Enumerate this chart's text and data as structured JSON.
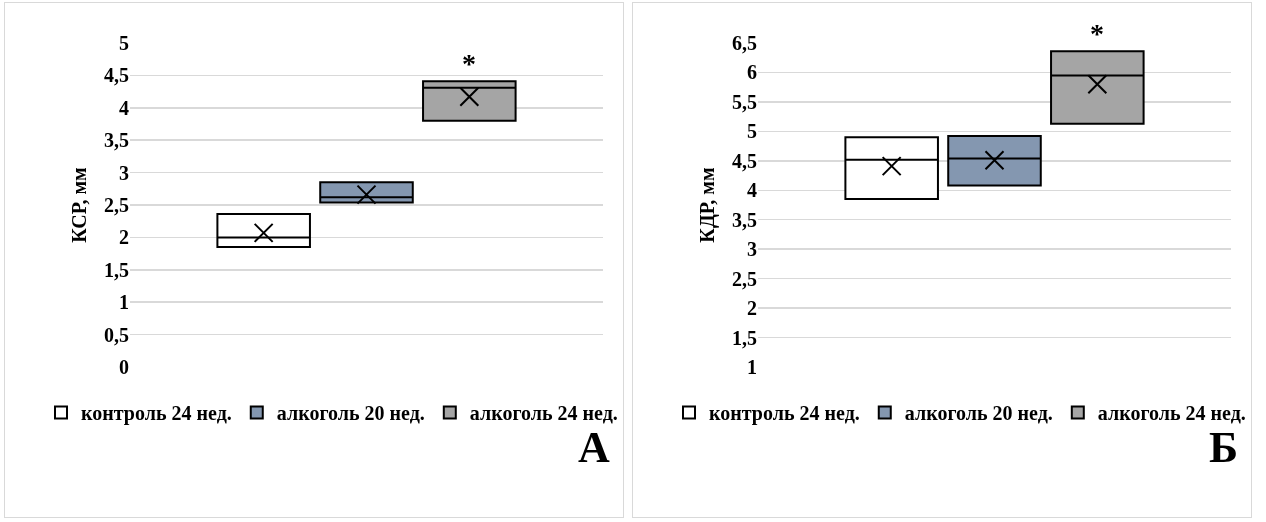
{
  "chart_data": [
    {
      "type": "box",
      "ylabel": "КСР, мм",
      "categories": [
        null
      ],
      "ylim": [
        0,
        5
      ],
      "yticks": [
        0,
        {
          "value": 0.5,
          "label": "0,5"
        },
        1,
        {
          "value": 1.5,
          "label": "1,5"
        },
        2,
        {
          "value": 2.5,
          "label": "2,5"
        },
        3,
        {
          "value": 3.5,
          "label": "3,5"
        },
        4,
        {
          "value": 4.5,
          "label": "4,5"
        },
        5
      ],
      "grid": "y",
      "legend": "bottom",
      "annotations": [
        "*",
        "А"
      ],
      "series": [
        {
          "name": "контроль 24 нед.",
          "color": "#ffffff",
          "boxes": [
            {
              "low": 1.85,
              "q1": 1.85,
              "median": 2.0,
              "q3": 2.36,
              "high": 2.36,
              "mean": 2.07
            }
          ]
        },
        {
          "name": "алкоголь 20 нед.",
          "color": "#8497b0",
          "boxes": [
            {
              "low": 2.54,
              "q1": 2.54,
              "median": 2.62,
              "q3": 2.85,
              "high": 2.85,
              "mean": 2.66
            }
          ]
        },
        {
          "name": "алкоголь 24 нед.",
          "color": "#a5a5a5",
          "boxes": [
            {
              "low": 3.8,
              "q1": 3.8,
              "median": 4.31,
              "q3": 4.41,
              "high": 4.41,
              "mean": 4.17
            }
          ]
        }
      ]
    },
    {
      "type": "box",
      "ylabel": "КДР, мм",
      "categories": [
        null
      ],
      "ylim": [
        1,
        6.5
      ],
      "yticks": [
        1,
        {
          "value": 1.5,
          "label": "1,5"
        },
        2,
        {
          "value": 2.5,
          "label": "2,5"
        },
        3,
        {
          "value": 3.5,
          "label": "3,5"
        },
        4,
        {
          "value": 4.5,
          "label": "4,5"
        },
        5,
        {
          "value": 5.5,
          "label": "5,5"
        },
        6,
        {
          "value": 6.5,
          "label": "6,5"
        }
      ],
      "grid": "y",
      "legend": "bottom",
      "annotations": [
        "*",
        "Б"
      ],
      "series": [
        {
          "name": "контроль 24 нед.",
          "color": "#ffffff",
          "boxes": [
            {
              "low": 3.85,
              "q1": 3.85,
              "median": 4.52,
              "q3": 4.9,
              "high": 4.9,
              "mean": 4.41
            }
          ]
        },
        {
          "name": "алкоголь 20 нед.",
          "color": "#8497b0",
          "boxes": [
            {
              "low": 4.08,
              "q1": 4.08,
              "median": 4.54,
              "q3": 4.92,
              "high": 4.92,
              "mean": 4.51
            }
          ]
        },
        {
          "name": "алкоголь 24 нед.",
          "color": "#a5a5a5",
          "boxes": [
            {
              "low": 5.13,
              "q1": 5.13,
              "median": 5.95,
              "q3": 6.36,
              "high": 6.36,
              "mean": 5.8
            }
          ]
        }
      ]
    }
  ]
}
